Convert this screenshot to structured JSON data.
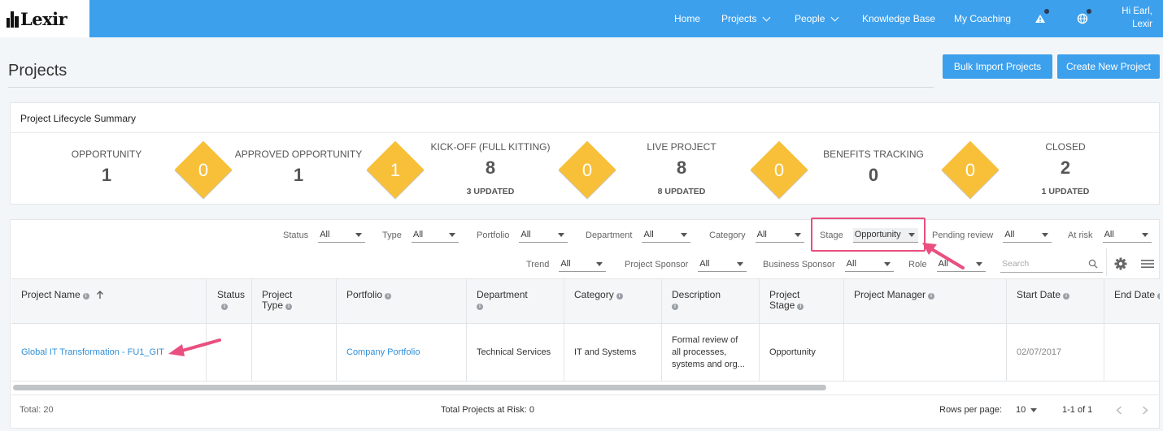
{
  "brand": {
    "name": "Lexir"
  },
  "nav": {
    "items": [
      {
        "label": "Home",
        "has_menu": false
      },
      {
        "label": "Projects",
        "has_menu": true
      },
      {
        "label": "People",
        "has_menu": true
      },
      {
        "label": "Knowledge Base",
        "has_menu": false
      },
      {
        "label": "My Coaching",
        "has_menu": false
      }
    ],
    "greeting_line1": "Hi Earl,",
    "greeting_line2": "Lexir",
    "icons": [
      "alert-icon",
      "globe-icon"
    ]
  },
  "page": {
    "title": "Projects",
    "bulk_import_label": "Bulk Import Projects",
    "create_label": "Create New Project"
  },
  "lifecycle": {
    "title": "Project Lifecycle Summary",
    "stages": [
      {
        "label": "OPPORTUNITY",
        "count": "1",
        "updated": ""
      },
      {
        "label": "APPROVED OPPORTUNITY",
        "count": "1",
        "updated": ""
      },
      {
        "label": "KICK-OFF (FULL KITTING)",
        "count": "8",
        "updated": "3 UPDATED"
      },
      {
        "label": "LIVE PROJECT",
        "count": "8",
        "updated": "8 UPDATED"
      },
      {
        "label": "BENEFITS TRACKING",
        "count": "0",
        "updated": ""
      },
      {
        "label": "CLOSED",
        "count": "2",
        "updated": "1 UPDATED"
      }
    ],
    "transitions": [
      "0",
      "1",
      "0",
      "0",
      "0"
    ],
    "diamond_color": "#f8c038"
  },
  "filters": {
    "row1": [
      {
        "label": "Status",
        "value": "All"
      },
      {
        "label": "Type",
        "value": "All"
      },
      {
        "label": "Portfolio",
        "value": "All"
      },
      {
        "label": "Department",
        "value": "All"
      },
      {
        "label": "Category",
        "value": "All"
      },
      {
        "label": "Stage",
        "value": "Opportunity"
      },
      {
        "label": "Pending review",
        "value": "All"
      },
      {
        "label": "At risk",
        "value": "All"
      }
    ],
    "row2": [
      {
        "label": "Trend",
        "value": "All"
      },
      {
        "label": "Project Sponsor",
        "value": "All"
      },
      {
        "label": "Business Sponsor",
        "value": "All"
      },
      {
        "label": "Role",
        "value": "All"
      }
    ],
    "search_placeholder": "Search"
  },
  "table": {
    "columns": [
      {
        "line1": "Project Name",
        "line2": "",
        "info": true,
        "sort": true
      },
      {
        "line1": "Status",
        "line2": "",
        "info": true,
        "sort": false
      },
      {
        "line1": "Project",
        "line2": "Type",
        "info": true,
        "sort": false
      },
      {
        "line1": "Portfolio",
        "line2": "",
        "info": true,
        "sort": false
      },
      {
        "line1": "Department",
        "line2": "",
        "info": true,
        "sort": false
      },
      {
        "line1": "Category",
        "line2": "",
        "info": true,
        "sort": false
      },
      {
        "line1": "Description",
        "line2": "",
        "info": true,
        "sort": false
      },
      {
        "line1": "Project",
        "line2": "Stage",
        "info": true,
        "sort": false
      },
      {
        "line1": "Project Manager",
        "line2": "",
        "info": true,
        "sort": false
      },
      {
        "line1": "Start Date",
        "line2": "",
        "info": true,
        "sort": false
      },
      {
        "line1": "End Date",
        "line2": "",
        "info": true,
        "sort": false
      }
    ],
    "rows": [
      {
        "project_name": "Global IT Transformation - FU1_GIT",
        "status": "",
        "project_type": "",
        "portfolio": "Company Portfolio",
        "department": "Technical Services",
        "category": "IT and Systems",
        "description_l1": "Formal review of",
        "description_l2": "all processes,",
        "description_l3": "systems and org...",
        "project_stage": "Opportunity",
        "project_manager": "",
        "start_date": "02/07/2017",
        "end_date": ""
      }
    ]
  },
  "footer": {
    "total": "Total: 20",
    "at_risk": "Total Projects at Risk: 0",
    "rows_per_page_label": "Rows per page:",
    "rows_per_page_value": "10",
    "range": "1-1 of 1"
  },
  "annotation_color": "#e94f7f",
  "accent_color": "#3da0ec"
}
